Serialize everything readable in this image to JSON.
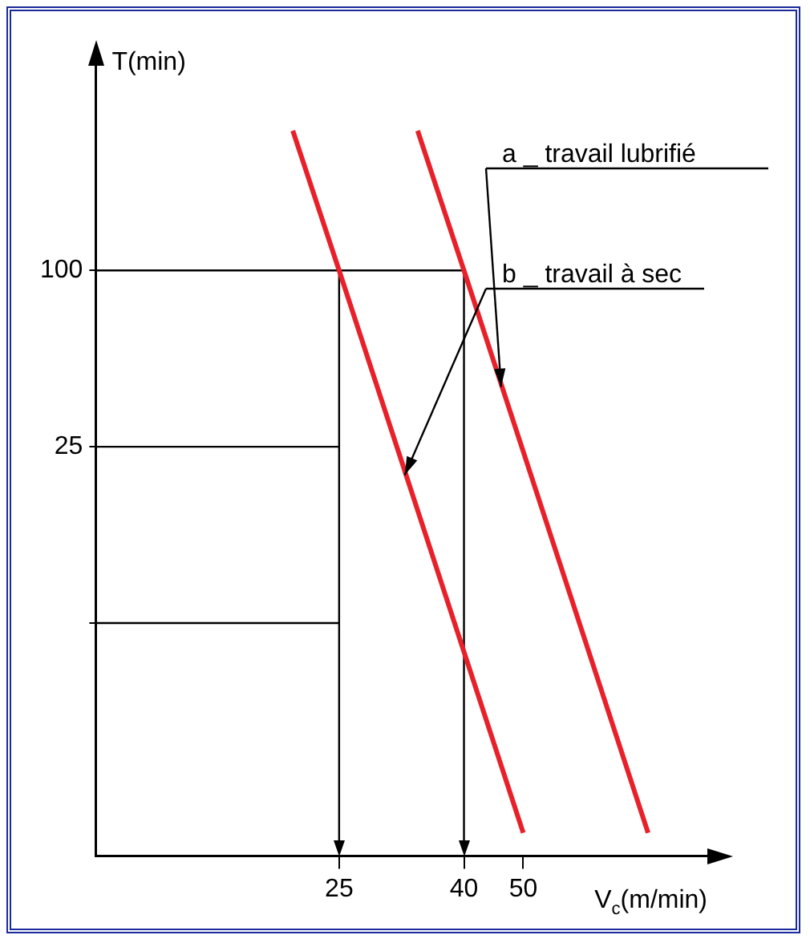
{
  "chart_data": {
    "type": "line",
    "xlabel": "V$_{c}$(m/min)",
    "ylabel": "T(min)",
    "log": "xy",
    "grid": false,
    "legend": false,
    "marker": "none",
    "line_style": "solid",
    "xlim": [
      10,
      100
    ],
    "xticks": [
      25,
      40,
      50
    ],
    "ylim": [
      1,
      500
    ],
    "yticks": [
      100,
      25,
      {
        "value": 6.25,
        "label": null
      }
    ],
    "series": [
      {
        "color": "#e8202a",
        "x": [
          33.6,
          40,
          80
        ],
        "values": [
          300,
          100,
          1.2
        ]
      },
      {
        "color": "#e8202a",
        "x": [
          21,
          25,
          50
        ],
        "values": [
          300,
          100,
          1.2
        ]
      }
    ],
    "ref_lines": [
      {
        "axis": "y",
        "value": 100,
        "label": null
      },
      {
        "axis": "y",
        "value": 25,
        "label": null
      },
      {
        "axis": "y",
        "value": 6.25,
        "label": null
      },
      {
        "axis": "x",
        "value": 25,
        "label": null
      },
      {
        "axis": "x",
        "value": 40,
        "label": null
      }
    ],
    "annotations": [
      {
        "text": "a _ travail lubrifié",
        "x": 46,
        "y": 40
      },
      {
        "text": "b _ travail à sec",
        "x": 32,
        "y": 20
      }
    ]
  }
}
